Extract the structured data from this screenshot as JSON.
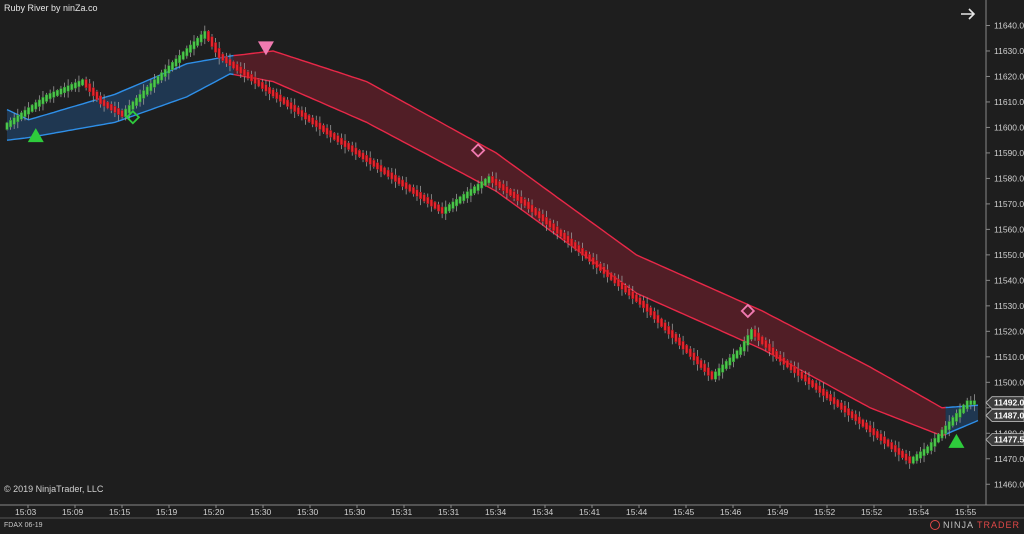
{
  "header": {
    "title": "Ruby River by ninZa.co"
  },
  "footer": {
    "copyright": "© 2019 NinjaTrader, LLC",
    "instrument": "FDAX 06-19",
    "brand_left": "NINJA",
    "brand_right": "TRADER"
  },
  "icons": {
    "goto_latest": "arrow-right-icon",
    "brand_logo": "ninjatrader-logo-icon"
  },
  "colors": {
    "background": "#1e1e1e",
    "up_candle": "#4cc84c",
    "down_candle": "#e8262e",
    "ribbon_bull_fill": "#1f3a56",
    "ribbon_bull_line": "#2e8fe8",
    "ribbon_bear_fill": "#5a1e28",
    "ribbon_bear_line": "#e82848",
    "signal_up": "#2ecc3c",
    "signal_down": "#f07ab0",
    "axis_text": "#d0d0d0"
  },
  "chart_data": {
    "type": "candlestick",
    "title": "Ruby River by ninZa.co",
    "instrument": "FDAX 06-19",
    "ylim": [
      11455,
      11650
    ],
    "y_ticks": [
      11460.0,
      11470.0,
      11480.0,
      11490.0,
      11500.0,
      11510.0,
      11520.0,
      11530.0,
      11540.0,
      11550.0,
      11560.0,
      11570.0,
      11580.0,
      11590.0,
      11600.0,
      11610.0,
      11620.0,
      11630.0,
      11640.0
    ],
    "y_tick_labels": [
      "11460.0",
      "11470.0",
      "11480.0",
      "11490.0",
      "11500.0",
      "11510.0",
      "11520.0",
      "11530.0",
      "11540.0",
      "11550.0",
      "11560.0",
      "11570.0",
      "11580.0",
      "11590.0",
      "11600.0",
      "11610.0",
      "11620.0",
      "11630.0",
      "11640.0"
    ],
    "x_tick_labels": [
      "15:03",
      "15:09",
      "15:15",
      "15:19",
      "15:20",
      "15:30",
      "15:30",
      "15:30",
      "15:31",
      "15:31",
      "15:34",
      "15:34",
      "15:41",
      "15:44",
      "15:45",
      "15:46",
      "15:49",
      "15:52",
      "15:52",
      "15:54",
      "15:55"
    ],
    "price_markers": [
      {
        "label": "11492.0",
        "value": 11492.0
      },
      {
        "label": "11487.0",
        "value": 11487.0
      },
      {
        "label": "11477.5",
        "value": 11477.5
      }
    ],
    "bars": 200,
    "close_path": [
      [
        0,
        11600
      ],
      [
        12,
        11612
      ],
      [
        22,
        11618
      ],
      [
        27,
        11610
      ],
      [
        33,
        11605
      ],
      [
        42,
        11618
      ],
      [
        56,
        11637
      ],
      [
        60,
        11628
      ],
      [
        66,
        11622
      ],
      [
        92,
        11596
      ],
      [
        122,
        11567
      ],
      [
        135,
        11580
      ],
      [
        145,
        11570
      ],
      [
        178,
        11530
      ],
      [
        197,
        11502
      ],
      [
        205,
        11513
      ],
      [
        208,
        11520
      ],
      [
        215,
        11510
      ],
      [
        252,
        11469
      ],
      [
        257,
        11474
      ],
      [
        268,
        11492
      ]
    ],
    "ribbon": [
      {
        "bar": 0,
        "upper": 11607,
        "lower": 11595,
        "trend": "bear"
      },
      {
        "bar": 6,
        "upper": 11603,
        "lower": 11596,
        "trend": "bull"
      },
      {
        "bar": 30,
        "upper": 11613,
        "lower": 11602,
        "trend": "bull"
      },
      {
        "bar": 50,
        "upper": 11625,
        "lower": 11612,
        "trend": "bull"
      },
      {
        "bar": 62,
        "upper": 11628,
        "lower": 11621,
        "trend": "bull"
      },
      {
        "bar": 74,
        "upper": 11630,
        "lower": 11618,
        "trend": "bear"
      },
      {
        "bar": 100,
        "upper": 11618,
        "lower": 11602,
        "trend": "bear"
      },
      {
        "bar": 136,
        "upper": 11590,
        "lower": 11575,
        "trend": "bear"
      },
      {
        "bar": 175,
        "upper": 11550,
        "lower": 11535,
        "trend": "bear"
      },
      {
        "bar": 210,
        "upper": 11528,
        "lower": 11513,
        "trend": "bear"
      },
      {
        "bar": 240,
        "upper": 11506,
        "lower": 11490,
        "trend": "bear"
      },
      {
        "bar": 260,
        "upper": 11490,
        "lower": 11479,
        "trend": "bear"
      },
      {
        "bar": 270,
        "upper": 11491,
        "lower": 11485,
        "trend": "bull"
      }
    ],
    "signals": [
      {
        "bar": 8,
        "price": 11597,
        "kind": "triangle-up",
        "color": "signal_up"
      },
      {
        "bar": 35,
        "price": 11604,
        "kind": "diamond",
        "color": "signal_up"
      },
      {
        "bar": 72,
        "price": 11631,
        "kind": "triangle-down",
        "color": "signal_down"
      },
      {
        "bar": 131,
        "price": 11591,
        "kind": "diamond",
        "color": "signal_down"
      },
      {
        "bar": 206,
        "price": 11528,
        "kind": "diamond",
        "color": "signal_down"
      },
      {
        "bar": 264,
        "price": 11477,
        "kind": "triangle-up",
        "color": "signal_up"
      }
    ],
    "grid": false
  }
}
